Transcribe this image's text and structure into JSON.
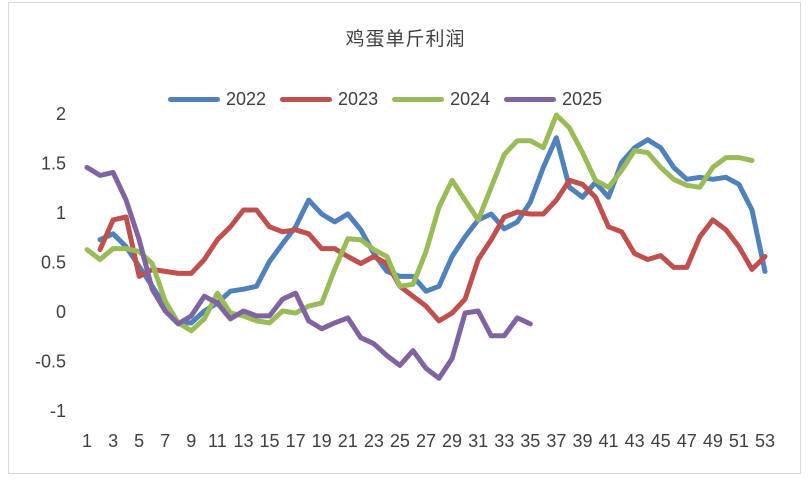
{
  "chart_data": {
    "type": "line",
    "title": "鸡蛋单斤利润",
    "xlabel": "",
    "ylabel": "",
    "ylim": [
      -1,
      2
    ],
    "yticks": [
      -1,
      -0.5,
      0,
      0.5,
      1,
      1.5,
      2
    ],
    "ytick_labels": [
      "-1",
      "-0.5",
      "0",
      "0.5",
      "1",
      "1.5",
      "2"
    ],
    "x_categories": [
      1,
      2,
      3,
      4,
      5,
      6,
      7,
      8,
      9,
      10,
      11,
      12,
      13,
      14,
      15,
      16,
      17,
      18,
      19,
      20,
      21,
      22,
      23,
      24,
      25,
      26,
      27,
      28,
      29,
      30,
      31,
      32,
      33,
      34,
      35,
      36,
      37,
      38,
      39,
      40,
      41,
      42,
      43,
      44,
      45,
      46,
      47,
      48,
      49,
      50,
      51,
      52,
      53
    ],
    "xtick_labels": [
      "1",
      "3",
      "5",
      "7",
      "9",
      "11",
      "13",
      "15",
      "17",
      "19",
      "21",
      "23",
      "25",
      "27",
      "29",
      "31",
      "33",
      "35",
      "37",
      "39",
      "41",
      "43",
      "45",
      "47",
      "49",
      "51",
      "53"
    ],
    "grid": false,
    "legend_position": "top",
    "series": [
      {
        "name": "2022",
        "color": "#4f81bd",
        "values": [
          null,
          0.72,
          0.78,
          0.65,
          0.45,
          0.25,
          0.05,
          -0.12,
          -0.12,
          0.0,
          0.08,
          0.2,
          0.22,
          0.25,
          0.5,
          0.68,
          0.85,
          1.12,
          0.98,
          0.9,
          0.98,
          0.82,
          0.58,
          0.4,
          0.35,
          0.35,
          0.2,
          0.25,
          0.55,
          0.75,
          0.92,
          0.98,
          0.83,
          0.9,
          1.1,
          1.45,
          1.75,
          1.25,
          1.15,
          1.3,
          1.15,
          1.5,
          1.65,
          1.73,
          1.65,
          1.45,
          1.33,
          1.35,
          1.33,
          1.35,
          1.28,
          1.02,
          0.4
        ]
      },
      {
        "name": "2023",
        "color": "#c0504d",
        "values": [
          null,
          0.62,
          0.92,
          0.95,
          0.35,
          0.42,
          0.4,
          0.38,
          0.38,
          0.52,
          0.72,
          0.85,
          1.02,
          1.02,
          0.85,
          0.8,
          0.82,
          0.78,
          0.63,
          0.63,
          0.55,
          0.48,
          0.55,
          0.48,
          0.25,
          0.15,
          0.05,
          -0.1,
          -0.02,
          0.12,
          0.52,
          0.72,
          0.95,
          1.0,
          0.98,
          0.98,
          1.12,
          1.32,
          1.28,
          1.15,
          0.85,
          0.8,
          0.58,
          0.52,
          0.56,
          0.44,
          0.44,
          0.75,
          0.92,
          0.82,
          0.65,
          0.42,
          0.55
        ]
      },
      {
        "name": "2024",
        "color": "#9bbb59",
        "values": [
          0.62,
          0.52,
          0.63,
          0.63,
          0.6,
          0.48,
          0.1,
          -0.12,
          -0.2,
          -0.08,
          0.18,
          -0.02,
          -0.05,
          -0.1,
          -0.12,
          0.0,
          -0.02,
          0.05,
          0.08,
          0.42,
          0.73,
          0.72,
          0.62,
          0.55,
          0.25,
          0.27,
          0.6,
          1.05,
          1.32,
          1.12,
          0.92,
          1.25,
          1.58,
          1.72,
          1.72,
          1.65,
          1.98,
          1.85,
          1.6,
          1.32,
          1.25,
          1.42,
          1.62,
          1.6,
          1.45,
          1.33,
          1.27,
          1.25,
          1.45,
          1.55,
          1.55,
          1.52,
          null
        ]
      },
      {
        "name": "2025",
        "color": "#8064a2",
        "values": [
          1.45,
          1.37,
          1.4,
          1.12,
          0.72,
          0.22,
          0.0,
          -0.13,
          -0.05,
          0.15,
          0.08,
          -0.08,
          0.0,
          -0.05,
          -0.05,
          0.12,
          0.18,
          -0.1,
          -0.18,
          -0.12,
          -0.07,
          -0.27,
          -0.33,
          -0.45,
          -0.55,
          -0.4,
          -0.58,
          -0.68,
          -0.48,
          -0.02,
          0.0,
          -0.25,
          -0.25,
          -0.07,
          -0.13
        ]
      }
    ]
  }
}
